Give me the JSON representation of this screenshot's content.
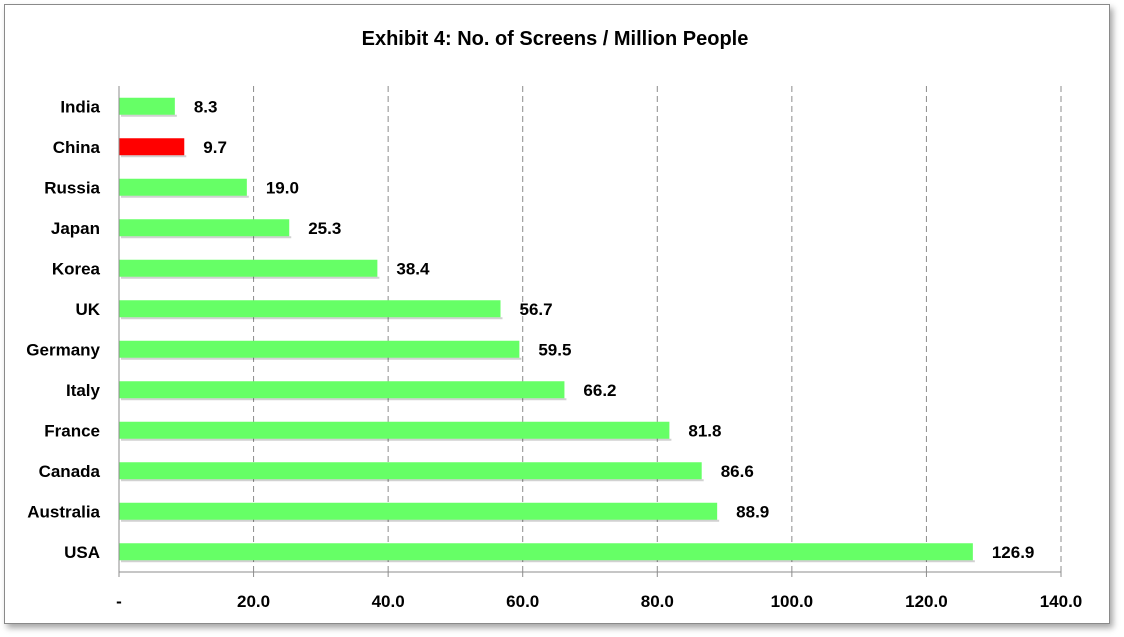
{
  "chart_data": {
    "type": "bar",
    "orientation": "horizontal",
    "title": "Exhibit 4: No. of Screens / Million People",
    "categories": [
      "India",
      "China",
      "Russia",
      "Japan",
      "Korea",
      "UK",
      "Germany",
      "Italy",
      "France",
      "Canada",
      "Australia",
      "USA"
    ],
    "values": [
      8.3,
      9.7,
      19.0,
      25.3,
      38.4,
      56.7,
      59.5,
      66.2,
      81.8,
      86.6,
      88.9,
      126.9
    ],
    "value_labels": [
      "8.3",
      "9.7",
      "19.0",
      "25.3",
      "38.4",
      "56.7",
      "59.5",
      "66.2",
      "81.8",
      "86.6",
      "88.9",
      "126.9"
    ],
    "bar_colors": [
      "#66ff66",
      "#ff0000",
      "#66ff66",
      "#66ff66",
      "#66ff66",
      "#66ff66",
      "#66ff66",
      "#66ff66",
      "#66ff66",
      "#66ff66",
      "#66ff66",
      "#66ff66"
    ],
    "xlim": [
      0,
      140
    ],
    "x_ticks": [
      0,
      20,
      40,
      60,
      80,
      100,
      120,
      140
    ],
    "x_tick_labels": [
      "-",
      "20.0",
      "40.0",
      "60.0",
      "80.0",
      "100.0",
      "120.0",
      "140.0"
    ],
    "gridlines": "vertical-dashed",
    "legend": "none"
  }
}
